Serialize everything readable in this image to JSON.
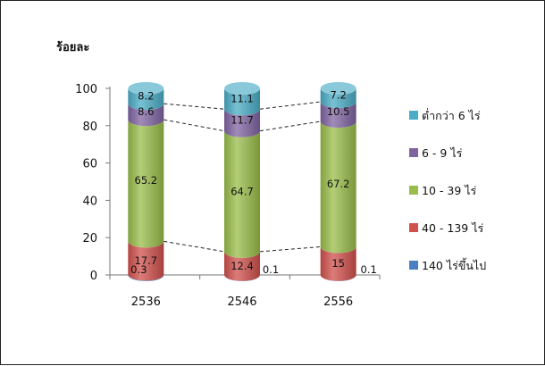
{
  "chart_data": {
    "type": "bar",
    "stacked": true,
    "style": "cylinder",
    "ylabel": "ร้อยละ",
    "ylim": [
      0,
      100
    ],
    "yticks": [
      0,
      20,
      40,
      60,
      80,
      100
    ],
    "categories": [
      "2536",
      "2546",
      "2556"
    ],
    "series": [
      {
        "name": "140 ไร่ขึ้นไป",
        "values": [
          0.3,
          0.1,
          0.1
        ],
        "color": "#4a7fc1"
      },
      {
        "name": "40 - 139 ไร่",
        "values": [
          17.7,
          12.4,
          15
        ],
        "color": "#d0504c"
      },
      {
        "name": "10 - 39 ไร่",
        "values": [
          65.2,
          64.7,
          67.2
        ],
        "color": "#99bd4a"
      },
      {
        "name": "6 - 9 ไร่",
        "values": [
          8.6,
          11.7,
          10.5
        ],
        "color": "#8064a2"
      },
      {
        "name": "ต่ำกว่า 6 ไร่",
        "values": [
          8.2,
          11.1,
          7.2
        ],
        "color": "#4bacc6"
      }
    ],
    "legend_order": [
      4,
      3,
      2,
      1,
      0
    ],
    "legend_position": "right",
    "series_lines": true,
    "grid": false
  }
}
